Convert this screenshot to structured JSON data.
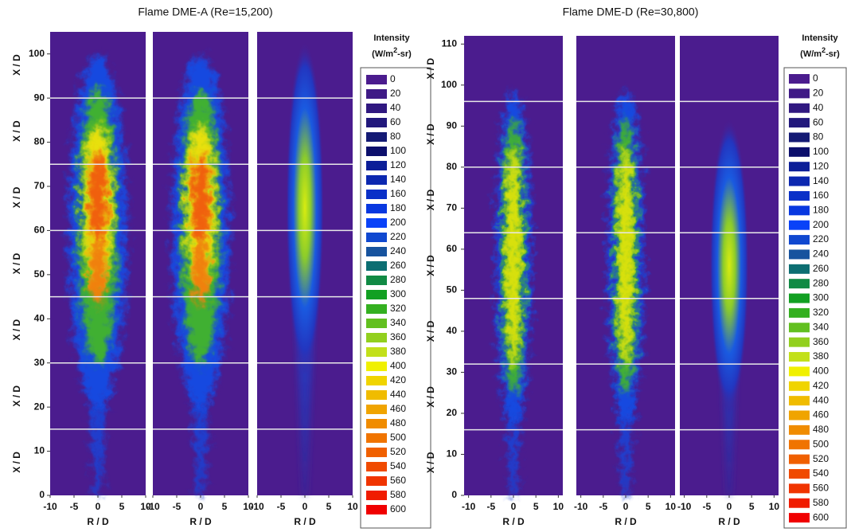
{
  "chart_data": [
    {
      "type": "heatmap",
      "title": "Flame DME-A (Re=15,200)",
      "y_label": "X / D",
      "x_label": "R / D",
      "xlim": [
        -10,
        10
      ],
      "xticks": [
        -10,
        -5,
        0,
        5,
        10
      ],
      "ylim": [
        0,
        105
      ],
      "yticks": [
        0,
        10,
        20,
        30,
        40,
        50,
        60,
        70,
        80,
        90,
        100
      ],
      "segment_lines": [
        15,
        30,
        45,
        60,
        75,
        90
      ],
      "line_color": "#e8e8e8",
      "background": "#4b1c8e",
      "legend": {
        "title": "Intensity",
        "unit": [
          "(W/m",
          "2",
          "-sr)"
        ],
        "levels": [
          0,
          20,
          40,
          60,
          80,
          100,
          120,
          140,
          160,
          180,
          200,
          220,
          240,
          260,
          280,
          300,
          320,
          340,
          360,
          380,
          400,
          420,
          440,
          460,
          480,
          500,
          520,
          540,
          560,
          580,
          600
        ],
        "colors": [
          "#4b1c8e",
          "#3f1a86",
          "#301880",
          "#22187c",
          "#141a74",
          "#0c0f6c",
          "#0c1e98",
          "#0c28b0",
          "#0a30c8",
          "#0838e0",
          "#0a42f8",
          "#1048d0",
          "#17539e",
          "#0c6e72",
          "#108a44",
          "#12a022",
          "#34b020",
          "#62c020",
          "#92d01e",
          "#c2e01a",
          "#f0f000",
          "#f0d400",
          "#f0bc00",
          "#f0a400",
          "#f08c00",
          "#f07400",
          "#f06000",
          "#f04a00",
          "#f03400",
          "#f01c00",
          "#f00000"
        ]
      }
    },
    {
      "type": "heatmap",
      "title": "Flame DME-D (Re=30,800)",
      "y_label": "X / D",
      "x_label": "R / D",
      "xlim": [
        -11,
        11
      ],
      "xticks": [
        -10,
        -5,
        0,
        5,
        10
      ],
      "ylim": [
        0,
        112
      ],
      "yticks": [
        0,
        10,
        20,
        30,
        40,
        50,
        60,
        70,
        80,
        90,
        100,
        110
      ],
      "segment_lines": [
        16,
        32,
        48,
        64,
        80,
        96
      ],
      "line_color": "#e8e8e8",
      "background": "#4b1c8e",
      "legend": {
        "title": "Intensity",
        "unit": [
          "(W/m",
          "2",
          "-sr)"
        ],
        "levels": [
          0,
          20,
          40,
          60,
          80,
          100,
          120,
          140,
          160,
          180,
          200,
          220,
          240,
          260,
          280,
          300,
          320,
          340,
          360,
          380,
          400,
          420,
          440,
          460,
          480,
          500,
          520,
          540,
          560,
          580,
          600
        ],
        "colors": [
          "#4b1c8e",
          "#3f1a86",
          "#301880",
          "#22187c",
          "#141a74",
          "#0c0f6c",
          "#0c1e98",
          "#0c28b0",
          "#0a30c8",
          "#0838e0",
          "#0a42f8",
          "#1048d0",
          "#17539e",
          "#0c6e72",
          "#108a44",
          "#12a022",
          "#34b020",
          "#62c020",
          "#92d01e",
          "#c2e01a",
          "#f0f000",
          "#f0d400",
          "#f0bc00",
          "#f0a400",
          "#f08c00",
          "#f07400",
          "#f06000",
          "#f04a00",
          "#f03400",
          "#f01c00",
          "#f00000"
        ]
      }
    }
  ]
}
